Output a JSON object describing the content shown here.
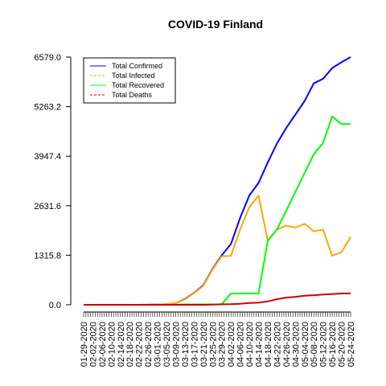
{
  "chart_data": {
    "type": "line",
    "title": "COVID-19 Finland",
    "xlabel": "",
    "ylabel": "",
    "ylim": [
      0,
      6579.0
    ],
    "yticks": [
      "0.0",
      "1315.8",
      "2631.6",
      "3947.4",
      "5263.2",
      "6579.0"
    ],
    "xtick_labels": [
      "01-29-2020",
      "02-02-2020",
      "02-06-2020",
      "02-10-2020",
      "02-14-2020",
      "02-18-2020",
      "02-22-2020",
      "02-26-2020",
      "03-01-2020",
      "03-05-2020",
      "03-09-2020",
      "03-13-2020",
      "03-17-2020",
      "03-21-2020",
      "03-25-2020",
      "03-29-2020",
      "04-02-2020",
      "04-06-2020",
      "04-10-2020",
      "04-14-2020",
      "04-18-2020",
      "04-22-2020",
      "04-26-2020",
      "04-30-2020",
      "05-04-2020",
      "05-08-2020",
      "05-12-2020",
      "05-16-2020",
      "05-20-2020",
      "05-24-2020"
    ],
    "legend_position": "top-left",
    "x": [
      "01-29-2020",
      "02-02-2020",
      "02-06-2020",
      "02-10-2020",
      "02-14-2020",
      "02-18-2020",
      "02-22-2020",
      "02-26-2020",
      "03-01-2020",
      "03-05-2020",
      "03-09-2020",
      "03-13-2020",
      "03-17-2020",
      "03-21-2020",
      "03-25-2020",
      "03-29-2020",
      "04-02-2020",
      "04-06-2020",
      "04-10-2020",
      "04-14-2020",
      "04-18-2020",
      "04-22-2020",
      "04-26-2020",
      "04-30-2020",
      "05-04-2020",
      "05-08-2020",
      "05-12-2020",
      "05-16-2020",
      "05-20-2020",
      "05-24-2020"
    ],
    "series": [
      {
        "name": "Total Confirmed",
        "color": "#0000ff",
        "values": [
          1,
          1,
          1,
          1,
          1,
          1,
          1,
          2,
          6,
          15,
          40,
          155,
          319,
          520,
          958,
          1313,
          1615,
          2308,
          2905,
          3237,
          3783,
          4284,
          4695,
          5051,
          5412,
          5880,
          6003,
          6286,
          6443,
          6579
        ]
      },
      {
        "name": "Total Infected",
        "color": "#ffa500",
        "values": [
          1,
          1,
          1,
          1,
          1,
          1,
          1,
          2,
          6,
          15,
          40,
          145,
          310,
          505,
          940,
          1290,
          1300,
          2000,
          2600,
          2900,
          1700,
          2000,
          2100,
          2050,
          2150,
          1950,
          2000,
          1300,
          1400,
          1800
        ]
      },
      {
        "name": "Total Recovered",
        "color": "#00ff00",
        "values": [
          0,
          0,
          0,
          0,
          0,
          0,
          0,
          0,
          0,
          0,
          0,
          10,
          10,
          10,
          10,
          10,
          300,
          300,
          300,
          300,
          1700,
          2000,
          2500,
          3000,
          3500,
          4000,
          4300,
          5000,
          4800,
          4800
        ]
      },
      {
        "name": "Total Deaths",
        "color": "#cc0000",
        "values": [
          0,
          0,
          0,
          0,
          0,
          0,
          0,
          0,
          0,
          0,
          0,
          0,
          0,
          1,
          5,
          13,
          17,
          28,
          49,
          56,
          90,
          150,
          190,
          211,
          240,
          255,
          271,
          287,
          298,
          304
        ]
      }
    ]
  }
}
